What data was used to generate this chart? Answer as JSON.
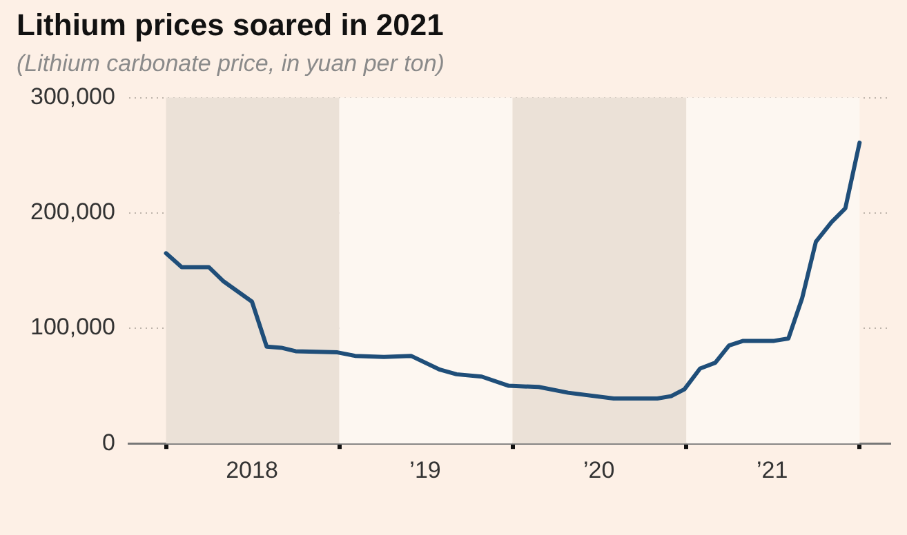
{
  "chart_data": {
    "type": "line",
    "title": "Lithium prices soared in 2021",
    "subtitle": "(Lithium carbonate price, in yuan per ton)",
    "x": [
      "2018-01-01",
      "2018-02-03",
      "2018-04-01",
      "2018-05-01",
      "2018-07-01",
      "2018-08-01",
      "2018-09-01",
      "2018-10-01",
      "2018-12-28",
      "2019-02-03",
      "2019-04-05",
      "2019-06-01",
      "2019-08-01",
      "2019-09-05",
      "2019-10-28",
      "2019-12-24",
      "2020-02-25",
      "2020-04-27",
      "2020-08-01",
      "2020-11-01",
      "2020-11-30",
      "2020-12-28",
      "2021-01-30",
      "2021-03-03",
      "2021-04-01",
      "2021-05-01",
      "2021-07-05",
      "2021-08-04",
      "2021-09-02",
      "2021-10-01",
      "2021-11-03",
      "2021-12-02",
      "2022-01-01"
    ],
    "series": [
      {
        "color": "#1f4e79",
        "values": [
          165000,
          153000,
          153000,
          141000,
          123000,
          84000,
          83000,
          80000,
          79000,
          76000,
          75000,
          76000,
          64000,
          60000,
          58000,
          50000,
          49000,
          44000,
          39000,
          39000,
          41000,
          47000,
          65000,
          70000,
          85000,
          89000,
          89000,
          91000,
          126000,
          175000,
          192000,
          204000,
          261000
        ]
      }
    ],
    "xlim": [
      "2017-10-15",
      "2022-03-07"
    ],
    "xticks": [
      {
        "value": "2018-01-01",
        "label": null
      },
      {
        "value": "2018-07-01",
        "label": "2018"
      },
      {
        "value": "2019-01-01",
        "label": null
      },
      {
        "value": "2019-07-01",
        "label": "’19"
      },
      {
        "value": "2020-01-01",
        "label": null
      },
      {
        "value": "2020-07-01",
        "label": "’20"
      },
      {
        "value": "2021-01-01",
        "label": null
      },
      {
        "value": "2021-07-01",
        "label": "’21"
      },
      {
        "value": "2022-01-01",
        "label": null
      }
    ],
    "ylim": [
      0,
      300000
    ],
    "yticks": [
      0,
      {
        "value": 100000,
        "label": "100,000"
      },
      {
        "value": 200000,
        "label": "200,000"
      },
      {
        "value": 300000,
        "label": "300,000"
      }
    ],
    "bands": [
      {
        "axis": "x",
        "from": "2018-01-01",
        "to": "2019-01-01",
        "color": "#ebe1d7"
      },
      {
        "axis": "x",
        "from": "2019-01-01",
        "to": "2020-01-01",
        "color": "#fdf7f1"
      },
      {
        "axis": "x",
        "from": "2020-01-01",
        "to": "2021-01-01",
        "color": "#ebe1d7"
      },
      {
        "axis": "x",
        "from": "2021-01-01",
        "to": "2022-01-01",
        "color": "#fdf7f1"
      }
    ],
    "grid": "y",
    "legend": false,
    "marker": "none",
    "line_style": "solid"
  }
}
